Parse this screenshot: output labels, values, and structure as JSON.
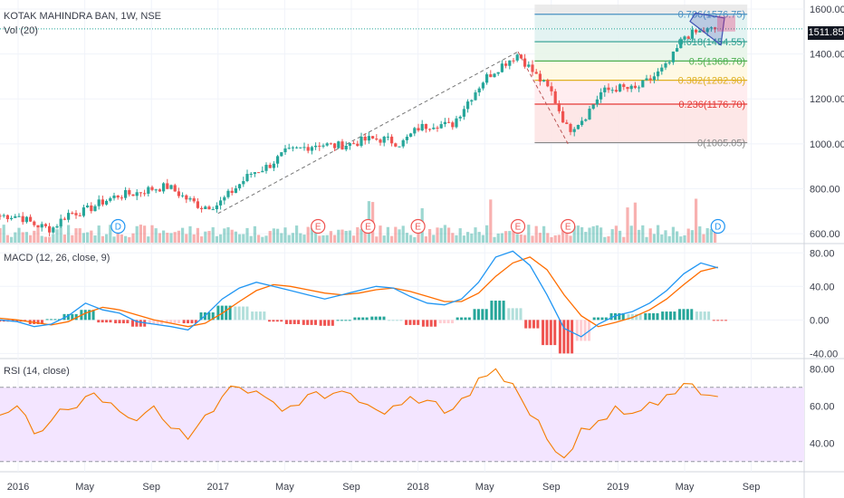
{
  "header": {
    "symbol_title": "KOTAK MAHINDRA BAN, 1W, NSE",
    "vol_label": "Vol (20)",
    "macd_label": "MACD (12, 26, close, 9)",
    "rsi_label": "RSI (14, close)",
    "last_price": "1511.85"
  },
  "colors": {
    "up": "#26a69a",
    "down": "#ef5350",
    "macd_line": "#2196f3",
    "signal_line": "#ff6d00",
    "rsi_line": "#f57c00",
    "rsi_band": "#f3e5ff",
    "fib_618": "#2a9d8f",
    "fib_50": "#4caf50",
    "fib_382": "#e0b020",
    "fib_236": "#e53935",
    "fib_0": "#888888",
    "fib_786": "#4a90c2"
  },
  "chart_data": [
    {
      "type": "candlestick",
      "name": "price",
      "x_axis_labels": [
        "2016",
        "May",
        "Sep",
        "2017",
        "May",
        "Sep",
        "2018",
        "May",
        "Sep",
        "2019",
        "May",
        "Sep"
      ],
      "y_ticks": [
        "1600.00",
        "1400.00",
        "1200.00",
        "1000.00",
        "800.00",
        "600.00"
      ],
      "ylim": [
        560,
        1620
      ],
      "close_path": [
        [
          "2016-01",
          680
        ],
        [
          "2016-02",
          640
        ],
        [
          "2016-03",
          620
        ],
        [
          "2016-04",
          690
        ],
        [
          "2016-05",
          700
        ],
        [
          "2016-06",
          740
        ],
        [
          "2016-07",
          770
        ],
        [
          "2016-08",
          780
        ],
        [
          "2016-09",
          800
        ],
        [
          "2016-10",
          810
        ],
        [
          "2016-11",
          760
        ],
        [
          "2016-12",
          720
        ],
        [
          "2017-01",
          730
        ],
        [
          "2017-02",
          800
        ],
        [
          "2017-03",
          870
        ],
        [
          "2017-04",
          900
        ],
        [
          "2017-05",
          960
        ],
        [
          "2017-06",
          980
        ],
        [
          "2017-07",
          1000
        ],
        [
          "2017-08",
          990
        ],
        [
          "2017-09",
          1000
        ],
        [
          "2017-10",
          1020
        ],
        [
          "2017-11",
          1020
        ],
        [
          "2017-12",
          1000
        ],
        [
          "2018-01",
          1070
        ],
        [
          "2018-02",
          1090
        ],
        [
          "2018-03",
          1080
        ],
        [
          "2018-04",
          1190
        ],
        [
          "2018-05",
          1290
        ],
        [
          "2018-06",
          1350
        ],
        [
          "2018-07",
          1400
        ],
        [
          "2018-08",
          1310
        ],
        [
          "2018-09",
          1230
        ],
        [
          "2018-10",
          1060
        ],
        [
          "2018-11",
          1120
        ],
        [
          "2018-12",
          1230
        ],
        [
          "2019-01",
          1250
        ],
        [
          "2019-02",
          1240
        ],
        [
          "2019-03",
          1290
        ],
        [
          "2019-04",
          1350
        ],
        [
          "2019-05",
          1480
        ],
        [
          "2019-06",
          1500
        ],
        [
          "2019-07",
          1511.85
        ]
      ],
      "last_close": 1511.85,
      "fibonacci": [
        {
          "level": "0.786",
          "value": 1576.75,
          "label": "0.786(1576.75)"
        },
        {
          "level": "0.618",
          "value": 1454.55,
          "label": "0.618(1454.55)"
        },
        {
          "level": "0.5",
          "value": 1368.7,
          "label": "0.5(1368.70)"
        },
        {
          "level": "0.382",
          "value": 1282.9,
          "label": "0.382(1282.90)"
        },
        {
          "level": "0.236",
          "value": 1176.7,
          "label": "0.236(1176.70)"
        },
        {
          "level": "0",
          "value": 1005.05,
          "label": "0(1005.05)"
        }
      ],
      "event_markers": [
        {
          "label": "D",
          "date": "2016-07"
        },
        {
          "label": "E",
          "date": "2017-07"
        },
        {
          "label": "E",
          "date": "2017-10"
        },
        {
          "label": "E",
          "date": "2018-01"
        },
        {
          "label": "E",
          "date": "2018-07"
        },
        {
          "label": "E",
          "date": "2018-10"
        },
        {
          "label": "D",
          "date": "2019-07"
        }
      ]
    },
    {
      "type": "line",
      "name": "MACD",
      "y_ticks": [
        "80.00",
        "40.00",
        "0.00",
        "-40.00"
      ],
      "ylim": [
        -45,
        90
      ],
      "series": [
        {
          "name": "MACD",
          "values": [
            0,
            -2,
            -8,
            -5,
            5,
            20,
            12,
            8,
            -2,
            -5,
            -8,
            -12,
            5,
            25,
            38,
            45,
            40,
            35,
            30,
            25,
            30,
            35,
            40,
            38,
            28,
            20,
            18,
            25,
            45,
            75,
            82,
            65,
            30,
            -10,
            -20,
            -5,
            5,
            10,
            20,
            35,
            55,
            68,
            62
          ]
        },
        {
          "name": "Signal",
          "values": [
            2,
            0,
            -3,
            -6,
            -2,
            8,
            15,
            12,
            6,
            0,
            -4,
            -8,
            -4,
            8,
            22,
            35,
            42,
            40,
            36,
            32,
            30,
            32,
            36,
            38,
            34,
            28,
            22,
            22,
            32,
            52,
            68,
            75,
            60,
            30,
            5,
            -8,
            -3,
            3,
            12,
            25,
            42,
            58,
            63
          ]
        }
      ]
    },
    {
      "type": "line",
      "name": "RSI",
      "y_ticks": [
        "80.00",
        "60.00",
        "40.00"
      ],
      "bands": [
        30,
        70
      ],
      "ylim": [
        25,
        85
      ],
      "values": [
        55,
        60,
        45,
        52,
        58,
        65,
        62,
        57,
        52,
        60,
        48,
        42,
        55,
        65,
        70,
        68,
        62,
        60,
        66,
        64,
        68,
        62,
        58,
        60,
        65,
        63,
        56,
        64,
        75,
        80,
        72,
        55,
        42,
        32,
        48,
        52,
        60,
        56,
        62,
        66,
        72,
        66,
        65
      ]
    }
  ]
}
